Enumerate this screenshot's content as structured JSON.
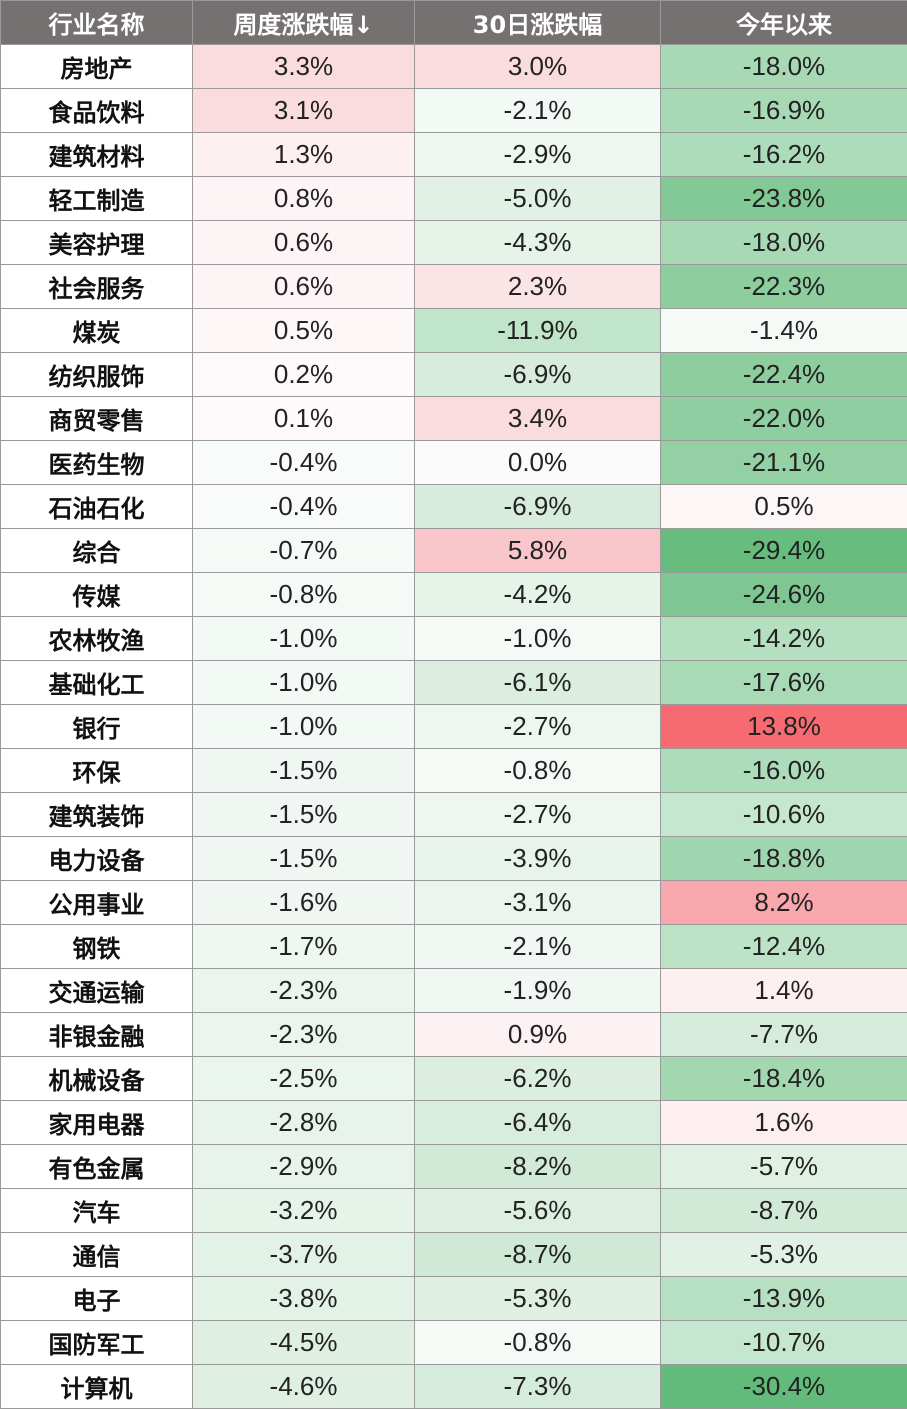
{
  "headers": [
    "行业名称",
    "周度涨跌幅↓",
    "30日涨跌幅",
    "今年以来"
  ],
  "rows": [
    {
      "name": "房地产",
      "weekly": "3.3%",
      "d30": "3.0%",
      "ytd": "-18.0%",
      "weekly_bg": "#fadcdf",
      "d30_bg": "#fadcdf",
      "ytd_bg": "#a6d9b4"
    },
    {
      "name": "食品饮料",
      "weekly": "3.1%",
      "d30": "-2.1%",
      "ytd": "-16.9%",
      "weekly_bg": "#fadcdf",
      "d30_bg": "#f3f9f4",
      "ytd_bg": "#a6d9b4"
    },
    {
      "name": "建筑材料",
      "weekly": "1.3%",
      "d30": "-2.9%",
      "ytd": "-16.2%",
      "weekly_bg": "#fdf0f1",
      "d30_bg": "#edf6ef",
      "ytd_bg": "#acdcb9"
    },
    {
      "name": "轻工制造",
      "weekly": "0.8%",
      "d30": "-5.0%",
      "ytd": "-23.8%",
      "weekly_bg": "#fdf4f5",
      "d30_bg": "#e1f1e5",
      "ytd_bg": "#82c995"
    },
    {
      "name": "美容护理",
      "weekly": "0.6%",
      "d30": "-4.3%",
      "ytd": "-18.0%",
      "weekly_bg": "#fdf4f5",
      "d30_bg": "#e5f3e8",
      "ytd_bg": "#a6d9b4"
    },
    {
      "name": "社会服务",
      "weekly": "0.6%",
      "d30": "2.3%",
      "ytd": "-22.3%",
      "weekly_bg": "#fdf4f5",
      "d30_bg": "#fbe4e6",
      "ytd_bg": "#8dcd9e"
    },
    {
      "name": "煤炭",
      "weekly": "0.5%",
      "d30": "-11.9%",
      "ytd": "-1.4%",
      "weekly_bg": "#fdf7f8",
      "d30_bg": "#c1e5cb",
      "ytd_bg": "#f6faf7"
    },
    {
      "name": "纺织服饰",
      "weekly": "0.2%",
      "d30": "-6.9%",
      "ytd": "-22.4%",
      "weekly_bg": "#fefafb",
      "d30_bg": "#d7ecdd",
      "ytd_bg": "#8dcd9e"
    },
    {
      "name": "商贸零售",
      "weekly": "0.1%",
      "d30": "3.4%",
      "ytd": "-22.0%",
      "weekly_bg": "#fefafb",
      "d30_bg": "#fadcdf",
      "ytd_bg": "#8fcea0"
    },
    {
      "name": "医药生物",
      "weekly": "-0.4%",
      "d30": "0.0%",
      "ytd": "-21.1%",
      "weekly_bg": "#f8fbf9",
      "d30_bg": "#fbfbfb",
      "ytd_bg": "#93d0a3"
    },
    {
      "name": "石油石化",
      "weekly": "-0.4%",
      "d30": "-6.9%",
      "ytd": "0.5%",
      "weekly_bg": "#f8fbf9",
      "d30_bg": "#d7ecdd",
      "ytd_bg": "#fdf6f7"
    },
    {
      "name": "综合",
      "weekly": "-0.7%",
      "d30": "5.8%",
      "ytd": "-29.4%",
      "weekly_bg": "#f6faf7",
      "d30_bg": "#f8c6cb",
      "ytd_bg": "#66bd7e"
    },
    {
      "name": "传媒",
      "weekly": "-0.8%",
      "d30": "-4.2%",
      "ytd": "-24.6%",
      "weekly_bg": "#f6faf7",
      "d30_bg": "#e5f3e8",
      "ytd_bg": "#7ec793"
    },
    {
      "name": "农林牧渔",
      "weekly": "-1.0%",
      "d30": "-1.0%",
      "ytd": "-14.2%",
      "weekly_bg": "#f3f9f4",
      "d30_bg": "#f6faf7",
      "ytd_bg": "#b4e0c0"
    },
    {
      "name": "基础化工",
      "weekly": "-1.0%",
      "d30": "-6.1%",
      "ytd": "-17.6%",
      "weekly_bg": "#f3f9f4",
      "d30_bg": "#dbeee0",
      "ytd_bg": "#a8dab6"
    },
    {
      "name": "银行",
      "weekly": "-1.0%",
      "d30": "-2.7%",
      "ytd": "13.8%",
      "weekly_bg": "#f3f9f4",
      "d30_bg": "#edf6ef",
      "ytd_bg": "#f66b72"
    },
    {
      "name": "环保",
      "weekly": "-1.5%",
      "d30": "-0.8%",
      "ytd": "-16.0%",
      "weekly_bg": "#f0f7f2",
      "d30_bg": "#f6faf7",
      "ytd_bg": "#acdcb9"
    },
    {
      "name": "建筑装饰",
      "weekly": "-1.5%",
      "d30": "-2.7%",
      "ytd": "-10.6%",
      "weekly_bg": "#f0f7f2",
      "d30_bg": "#edf6ef",
      "ytd_bg": "#c6e7cf"
    },
    {
      "name": "电力设备",
      "weekly": "-1.5%",
      "d30": "-3.9%",
      "ytd": "-18.8%",
      "weekly_bg": "#f0f7f2",
      "d30_bg": "#e8f4eb",
      "ytd_bg": "#a0d6af"
    },
    {
      "name": "公用事业",
      "weekly": "-1.6%",
      "d30": "-3.1%",
      "ytd": "8.2%",
      "weekly_bg": "#f0f7f2",
      "d30_bg": "#ebf5ee",
      "ytd_bg": "#f8a8ad"
    },
    {
      "name": "钢铁",
      "weekly": "-1.7%",
      "d30": "-2.1%",
      "ytd": "-12.4%",
      "weekly_bg": "#eff7f1",
      "d30_bg": "#f1f8f3",
      "ytd_bg": "#bde3c7"
    },
    {
      "name": "交通运输",
      "weekly": "-2.3%",
      "d30": "-1.9%",
      "ytd": "1.4%",
      "weekly_bg": "#ebf5ee",
      "d30_bg": "#f1f8f3",
      "ytd_bg": "#fdf0f1"
    },
    {
      "name": "非银金融",
      "weekly": "-2.3%",
      "d30": "0.9%",
      "ytd": "-7.7%",
      "weekly_bg": "#ebf5ee",
      "d30_bg": "#fdf2f3",
      "ytd_bg": "#d5ebdb"
    },
    {
      "name": "机械设备",
      "weekly": "-2.5%",
      "d30": "-6.2%",
      "ytd": "-18.4%",
      "weekly_bg": "#eaf5ed",
      "d30_bg": "#dbeee0",
      "ytd_bg": "#a2d7b0"
    },
    {
      "name": "家用电器",
      "weekly": "-2.8%",
      "d30": "-6.4%",
      "ytd": "1.6%",
      "weekly_bg": "#e8f4eb",
      "d30_bg": "#d9eddf",
      "ytd_bg": "#fdeef0"
    },
    {
      "name": "有色金属",
      "weekly": "-2.9%",
      "d30": "-8.2%",
      "ytd": "-5.7%",
      "weekly_bg": "#e8f4eb",
      "d30_bg": "#d1ead8",
      "ytd_bg": "#e0f1e4"
    },
    {
      "name": "汽车",
      "weekly": "-3.2%",
      "d30": "-5.6%",
      "ytd": "-8.7%",
      "weekly_bg": "#e6f3e9",
      "d30_bg": "#dcefe1",
      "ytd_bg": "#d1ead8"
    },
    {
      "name": "通信",
      "weekly": "-3.7%",
      "d30": "-8.7%",
      "ytd": "-5.3%",
      "weekly_bg": "#e3f2e6",
      "d30_bg": "#cfe9d6",
      "ytd_bg": "#e1f1e5"
    },
    {
      "name": "电子",
      "weekly": "-3.8%",
      "d30": "-5.3%",
      "ytd": "-13.9%",
      "weekly_bg": "#e3f2e6",
      "d30_bg": "#dff0e3",
      "ytd_bg": "#b6e0c1"
    },
    {
      "name": "国防军工",
      "weekly": "-4.5%",
      "d30": "-0.8%",
      "ytd": "-10.7%",
      "weekly_bg": "#dff0e3",
      "d30_bg": "#f6faf7",
      "ytd_bg": "#c6e7cf"
    },
    {
      "name": "计算机",
      "weekly": "-4.6%",
      "d30": "-7.3%",
      "ytd": "-30.4%",
      "weekly_bg": "#dff0e3",
      "d30_bg": "#d5ebdb",
      "ytd_bg": "#63bb7b"
    }
  ]
}
